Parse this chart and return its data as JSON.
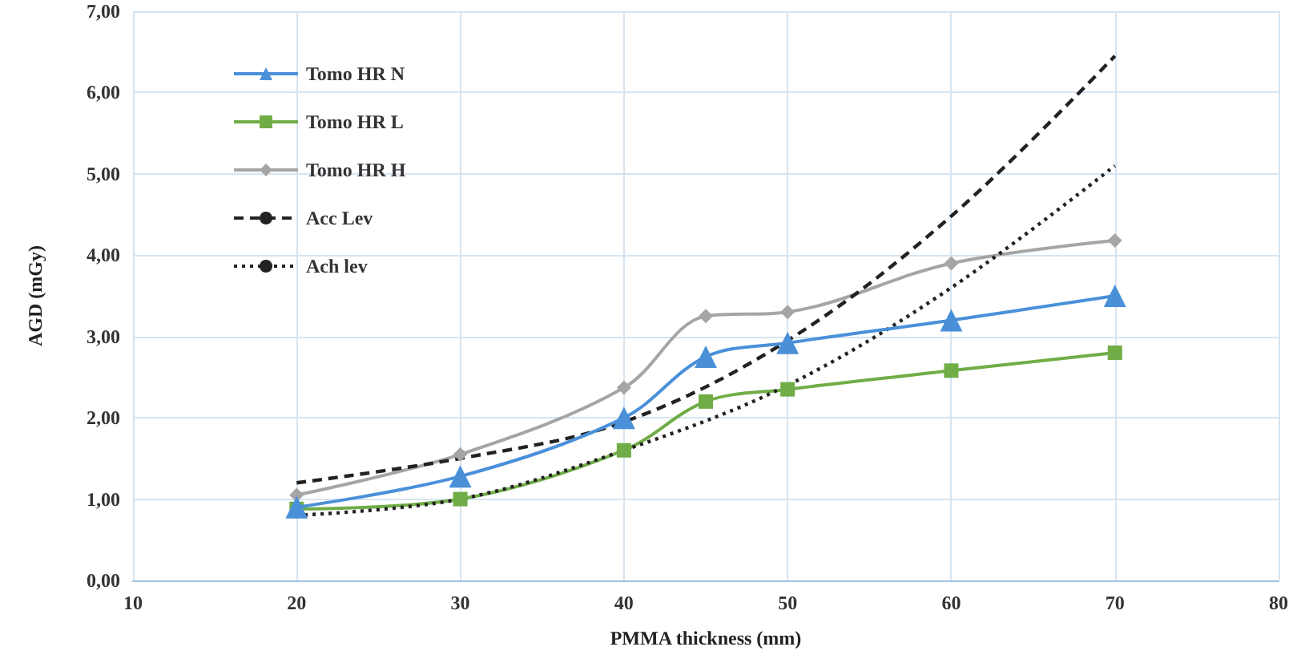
{
  "chart_data": {
    "type": "line",
    "xlabel": "PMMA thickness (mm)",
    "ylabel": "AGD (mGy)",
    "xlim": [
      10,
      80
    ],
    "xticks": [
      10,
      20,
      30,
      40,
      50,
      60,
      70,
      80
    ],
    "ylim": [
      0,
      7
    ],
    "yticks": [
      {
        "value": 0,
        "label": "0,00"
      },
      {
        "value": 1,
        "label": "1,00"
      },
      {
        "value": 2,
        "label": "2,00"
      },
      {
        "value": 3,
        "label": "3,00"
      },
      {
        "value": 4,
        "label": "4,00"
      },
      {
        "value": 5,
        "label": "5,00"
      },
      {
        "value": 6,
        "label": "6,00"
      },
      {
        "value": 7,
        "label": "7,00"
      }
    ],
    "grid": true,
    "legend": "top left",
    "series": [
      {
        "name": "Tomo HR N",
        "color": "#4a90d9",
        "marker": "triangle",
        "line_style": "solid",
        "x": [
          20,
          30,
          40,
          45,
          50,
          60,
          70
        ],
        "values": [
          0.9,
          1.28,
          2.0,
          2.75,
          2.92,
          3.2,
          3.5
        ]
      },
      {
        "name": "Tomo HR L",
        "color": "#70ad47",
        "marker": "square",
        "line_style": "solid",
        "x": [
          20,
          30,
          40,
          45,
          50,
          60,
          70
        ],
        "values": [
          0.88,
          1.0,
          1.6,
          2.2,
          2.35,
          2.58,
          2.8
        ]
      },
      {
        "name": "Tomo HR H",
        "color": "#a5a5a5",
        "marker": "diamond",
        "line_style": "solid",
        "x": [
          20,
          30,
          40,
          45,
          50,
          60,
          70
        ],
        "values": [
          1.05,
          1.55,
          2.37,
          3.25,
          3.3,
          3.9,
          4.18
        ]
      },
      {
        "name": "Acc Lev",
        "color": "#222222",
        "marker": "none",
        "line_style": "dashed",
        "x": [
          20,
          30,
          40,
          50,
          60,
          70
        ],
        "values": [
          1.2,
          1.5,
          1.95,
          2.95,
          4.48,
          6.45
        ]
      },
      {
        "name": "Ach lev",
        "color": "#222222",
        "marker": "none",
        "line_style": "dotted",
        "x": [
          20,
          30,
          40,
          50,
          60,
          70
        ],
        "values": [
          0.8,
          1.0,
          1.6,
          2.4,
          3.6,
          5.1
        ]
      }
    ]
  }
}
